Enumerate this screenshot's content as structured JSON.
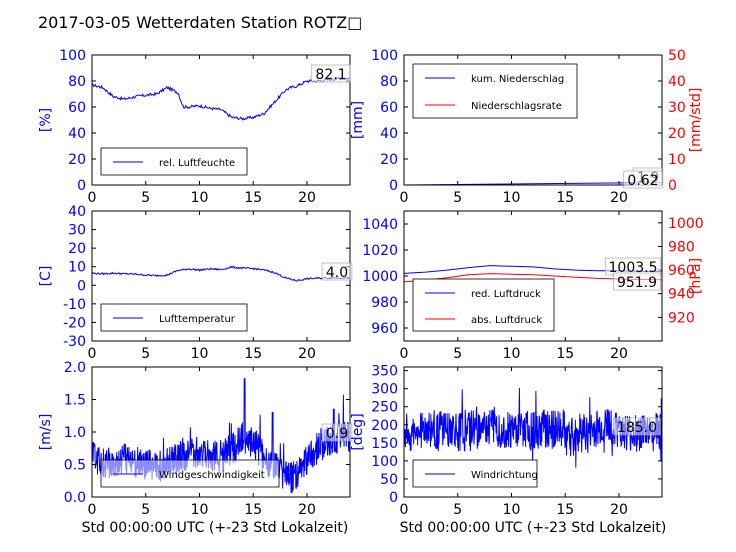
{
  "title": "2017-03-05 Wetterdaten Station ROTZ□",
  "colors": {
    "primary": "#0000ff",
    "secondary": "#ff0000",
    "wind_band": "#8080ff"
  },
  "x_axis_label": "Std 00:00:00 UTC (+-23 Std Lokalzeit)",
  "chart_data": [
    {
      "id": "humidity",
      "type": "line",
      "ylabel": "[%]",
      "ylim": [
        0,
        100
      ],
      "yticks": [
        0,
        20,
        40,
        60,
        80,
        100
      ],
      "xlim": [
        0,
        24
      ],
      "xticks": [
        0,
        5,
        10,
        15,
        20
      ],
      "series": [
        {
          "name": "rel. Luftfeuchte",
          "color": "#0000ff",
          "x": [
            0,
            1,
            2,
            3,
            4,
            5,
            6,
            7,
            8,
            8.5,
            9,
            10,
            11,
            12,
            13,
            14,
            15,
            16,
            17,
            18,
            18.5,
            19,
            20,
            21,
            22,
            23,
            24
          ],
          "y": [
            77,
            75,
            68,
            66,
            68,
            69,
            70,
            75,
            71,
            60,
            60,
            61,
            59,
            58,
            52,
            51,
            52,
            55,
            64,
            73,
            75,
            76,
            80,
            80,
            81,
            82,
            82
          ]
        }
      ],
      "annotation": "82.1"
    },
    {
      "id": "precip",
      "type": "line",
      "ylabel": "[mm]",
      "ylim": [
        0,
        100
      ],
      "yticks": [
        0,
        20,
        40,
        60,
        80,
        100
      ],
      "y2label": "[mm/std]",
      "y2lim": [
        0,
        50
      ],
      "y2ticks": [
        0,
        10,
        20,
        30,
        40,
        50
      ],
      "xlim": [
        0,
        24
      ],
      "xticks": [
        0,
        5,
        10,
        15,
        20
      ],
      "series": [
        {
          "name": "kum. Niederschlag",
          "axis": "left",
          "color": "#0000ff",
          "x": [
            0,
            24
          ],
          "y": [
            0,
            1.9
          ]
        },
        {
          "name": "Niederschlagsrate",
          "axis": "right",
          "color": "#ff0000",
          "x": [
            0,
            24
          ],
          "y": [
            0,
            0
          ]
        }
      ],
      "annotations": [
        "1.9",
        "0.62"
      ]
    },
    {
      "id": "temperature",
      "type": "line",
      "ylabel": "[C]",
      "ylim": [
        -30,
        40
      ],
      "yticks": [
        -30,
        -20,
        -10,
        0,
        10,
        20,
        30,
        40
      ],
      "xlim": [
        0,
        24
      ],
      "xticks": [
        0,
        5,
        10,
        15,
        20
      ],
      "series": [
        {
          "name": "Lufttemperatur",
          "color": "#0000ff",
          "x": [
            0,
            1,
            2,
            3,
            4,
            5,
            6,
            7,
            8,
            9,
            10,
            11,
            12,
            13,
            14,
            15,
            16,
            17,
            18,
            19,
            20,
            21,
            22,
            23,
            24
          ],
          "y": [
            6.5,
            6.2,
            6.5,
            6.2,
            6,
            5.5,
            5.2,
            5.5,
            8,
            8.8,
            8.2,
            8.8,
            8.5,
            9.8,
            9.2,
            9,
            8.2,
            6.8,
            4,
            2.5,
            3.5,
            3.8,
            4,
            4,
            4
          ]
        }
      ],
      "annotation": "4.0"
    },
    {
      "id": "pressure",
      "type": "line",
      "ylabel": "",
      "ylim": [
        950,
        1050
      ],
      "yticks": [
        960,
        980,
        1000,
        1020,
        1040
      ],
      "y2label": "[hPa]",
      "y2lim": [
        900,
        1010
      ],
      "y2ticks": [
        920,
        940,
        960,
        980,
        1000
      ],
      "xlim": [
        0,
        24
      ],
      "xticks": [
        0,
        5,
        10,
        15,
        20
      ],
      "series": [
        {
          "name": "red. Luftdruck",
          "axis": "left",
          "color": "#0000ff",
          "x": [
            0,
            2,
            4,
            6,
            8,
            10,
            12,
            14,
            16,
            18,
            20,
            22,
            24
          ],
          "y": [
            1002,
            1003,
            1004.5,
            1006.5,
            1008,
            1007.5,
            1007,
            1005.5,
            1004.5,
            1004,
            1004,
            1003.5,
            1003.5
          ]
        },
        {
          "name": "abs. Luftdruck",
          "axis": "right",
          "color": "#ff0000",
          "x": [
            0,
            2,
            4,
            6,
            8,
            10,
            12,
            14,
            16,
            18,
            20,
            22,
            24
          ],
          "y": [
            950,
            951.5,
            953.5,
            956,
            957,
            956.5,
            956,
            955,
            954,
            953,
            952.5,
            952,
            951.9
          ]
        }
      ],
      "annotations": [
        "1003.5",
        "951.9"
      ]
    },
    {
      "id": "windspeed",
      "type": "line",
      "ylabel": "[m/s]",
      "ylim": [
        0,
        2.0
      ],
      "yticks": [
        0.0,
        0.5,
        1.0,
        1.5,
        2.0
      ],
      "xlim": [
        0,
        24
      ],
      "xticks": [
        0,
        5,
        10,
        15,
        20
      ],
      "series": [
        {
          "name": "Windgeschwindigkeit",
          "color": "#0000ff",
          "x": [
            0,
            1,
            2,
            3,
            4,
            5,
            6,
            7,
            8,
            9,
            10,
            11,
            12,
            13,
            14,
            15,
            16,
            17,
            18,
            19,
            20,
            21,
            22,
            23,
            24
          ],
          "y": [
            0.6,
            0.55,
            0.5,
            0.6,
            0.55,
            0.5,
            0.45,
            0.55,
            0.6,
            0.65,
            0.7,
            0.65,
            0.6,
            0.75,
            0.9,
            0.85,
            0.6,
            0.45,
            0.3,
            0.3,
            0.6,
            0.75,
            0.85,
            0.9,
            0.95
          ],
          "peaks": [
            [
              14.2,
              1.82
            ],
            [
              16.8,
              1.3
            ],
            [
              22.5,
              1.35
            ]
          ]
        }
      ],
      "annotation": "0.9"
    },
    {
      "id": "winddir",
      "type": "line",
      "ylabel": "[deg]",
      "ylim": [
        0,
        360
      ],
      "yticks": [
        0,
        50,
        100,
        150,
        200,
        250,
        300,
        350
      ],
      "xlim": [
        0,
        24
      ],
      "xticks": [
        0,
        5,
        10,
        15,
        20
      ],
      "series": [
        {
          "name": "Windrichtung",
          "color": "#0000ff",
          "x": [
            0,
            1,
            2,
            3,
            4,
            5,
            6,
            7,
            8,
            9,
            10,
            11,
            12,
            13,
            14,
            15,
            16,
            17,
            18,
            19,
            20,
            21,
            22,
            23,
            24
          ],
          "y": [
            180,
            175,
            190,
            185,
            195,
            180,
            190,
            185,
            200,
            190,
            185,
            195,
            180,
            190,
            185,
            190,
            180,
            175,
            185,
            200,
            190,
            170,
            180,
            175,
            185
          ]
        }
      ],
      "annotation": "185.0"
    }
  ]
}
